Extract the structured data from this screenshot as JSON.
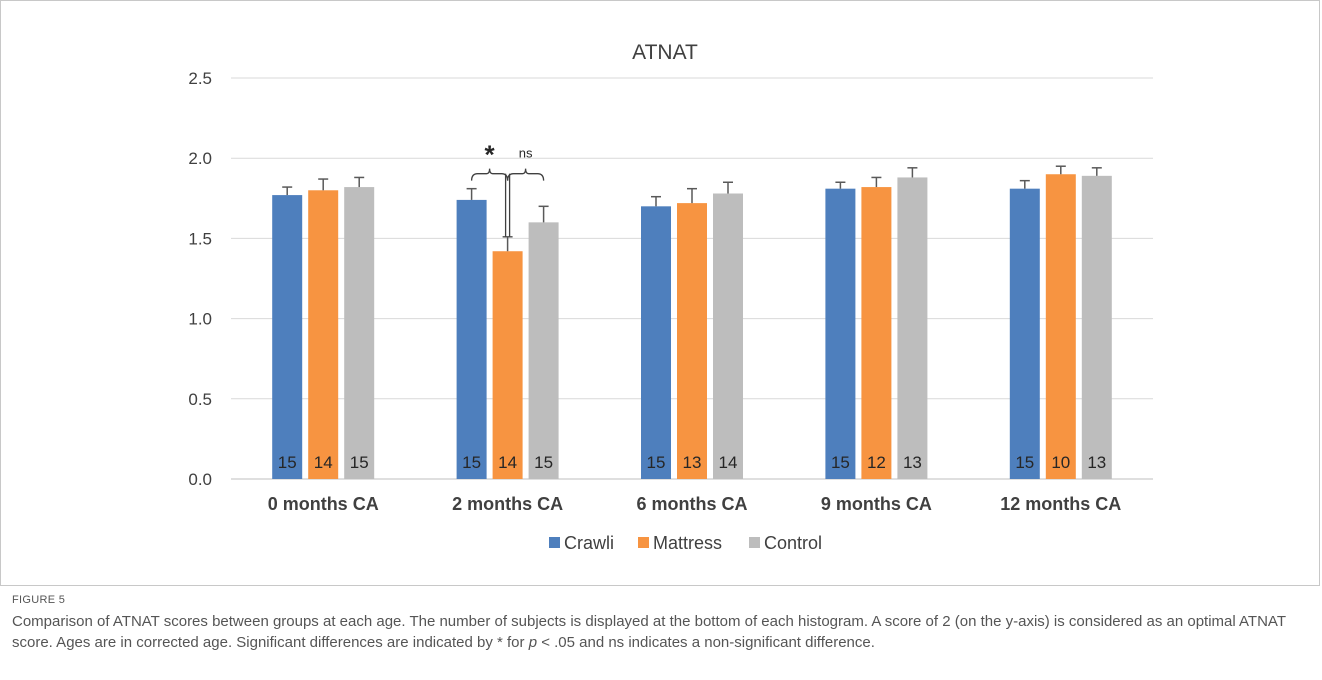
{
  "figure": {
    "label": "FIGURE 5",
    "caption_pre": "Comparison of ATNAT scores between groups at each age. The number of subjects is displayed at the bottom of each histogram. A score of 2 (on the y-axis) is considered as an optimal ATNAT score. Ages are in corrected age. Significant differences are indicated by * for ",
    "caption_p": "p",
    "caption_post": " < .05 and ns indicates a non-significant difference."
  },
  "colors": {
    "Crawli": "#4e7fbd",
    "Mattress": "#f79441",
    "Control": "#bdbdbd",
    "grid": "#d9d9d9",
    "axis_text": "#404040"
  },
  "chart_data": {
    "type": "bar",
    "title": "ATNAT",
    "xlabel": "",
    "ylabel": "",
    "ylim": [
      0,
      2.5
    ],
    "yticks": [
      "0.0",
      "0.5",
      "1.0",
      "1.5",
      "2.0",
      "2.5"
    ],
    "grid": true,
    "legend_position": "bottom",
    "categories": [
      "0 months CA",
      "2 months CA",
      "6 months CA",
      "9 months CA",
      "12 months CA"
    ],
    "series": [
      {
        "name": "Crawli",
        "values": [
          1.77,
          1.74,
          1.7,
          1.81,
          1.81
        ],
        "error": [
          0.05,
          0.07,
          0.06,
          0.04,
          0.05
        ],
        "n": [
          "15",
          "15",
          "15",
          "15",
          "15"
        ]
      },
      {
        "name": "Mattress",
        "values": [
          1.8,
          1.42,
          1.72,
          1.82,
          1.9
        ],
        "error": [
          0.07,
          0.09,
          0.09,
          0.06,
          0.05
        ],
        "n": [
          "14",
          "14",
          "13",
          "12",
          "10"
        ]
      },
      {
        "name": "Control",
        "values": [
          1.82,
          1.6,
          1.78,
          1.88,
          1.89
        ],
        "error": [
          0.06,
          0.1,
          0.07,
          0.06,
          0.05
        ],
        "n": [
          "15",
          "15",
          "14",
          "13",
          "13"
        ]
      }
    ],
    "annotations": [
      {
        "category": "2 months CA",
        "from": "Crawli",
        "to": "Mattress",
        "label": "*"
      },
      {
        "category": "2 months CA",
        "from": "Mattress",
        "to": "Control",
        "label": "ns"
      }
    ]
  }
}
